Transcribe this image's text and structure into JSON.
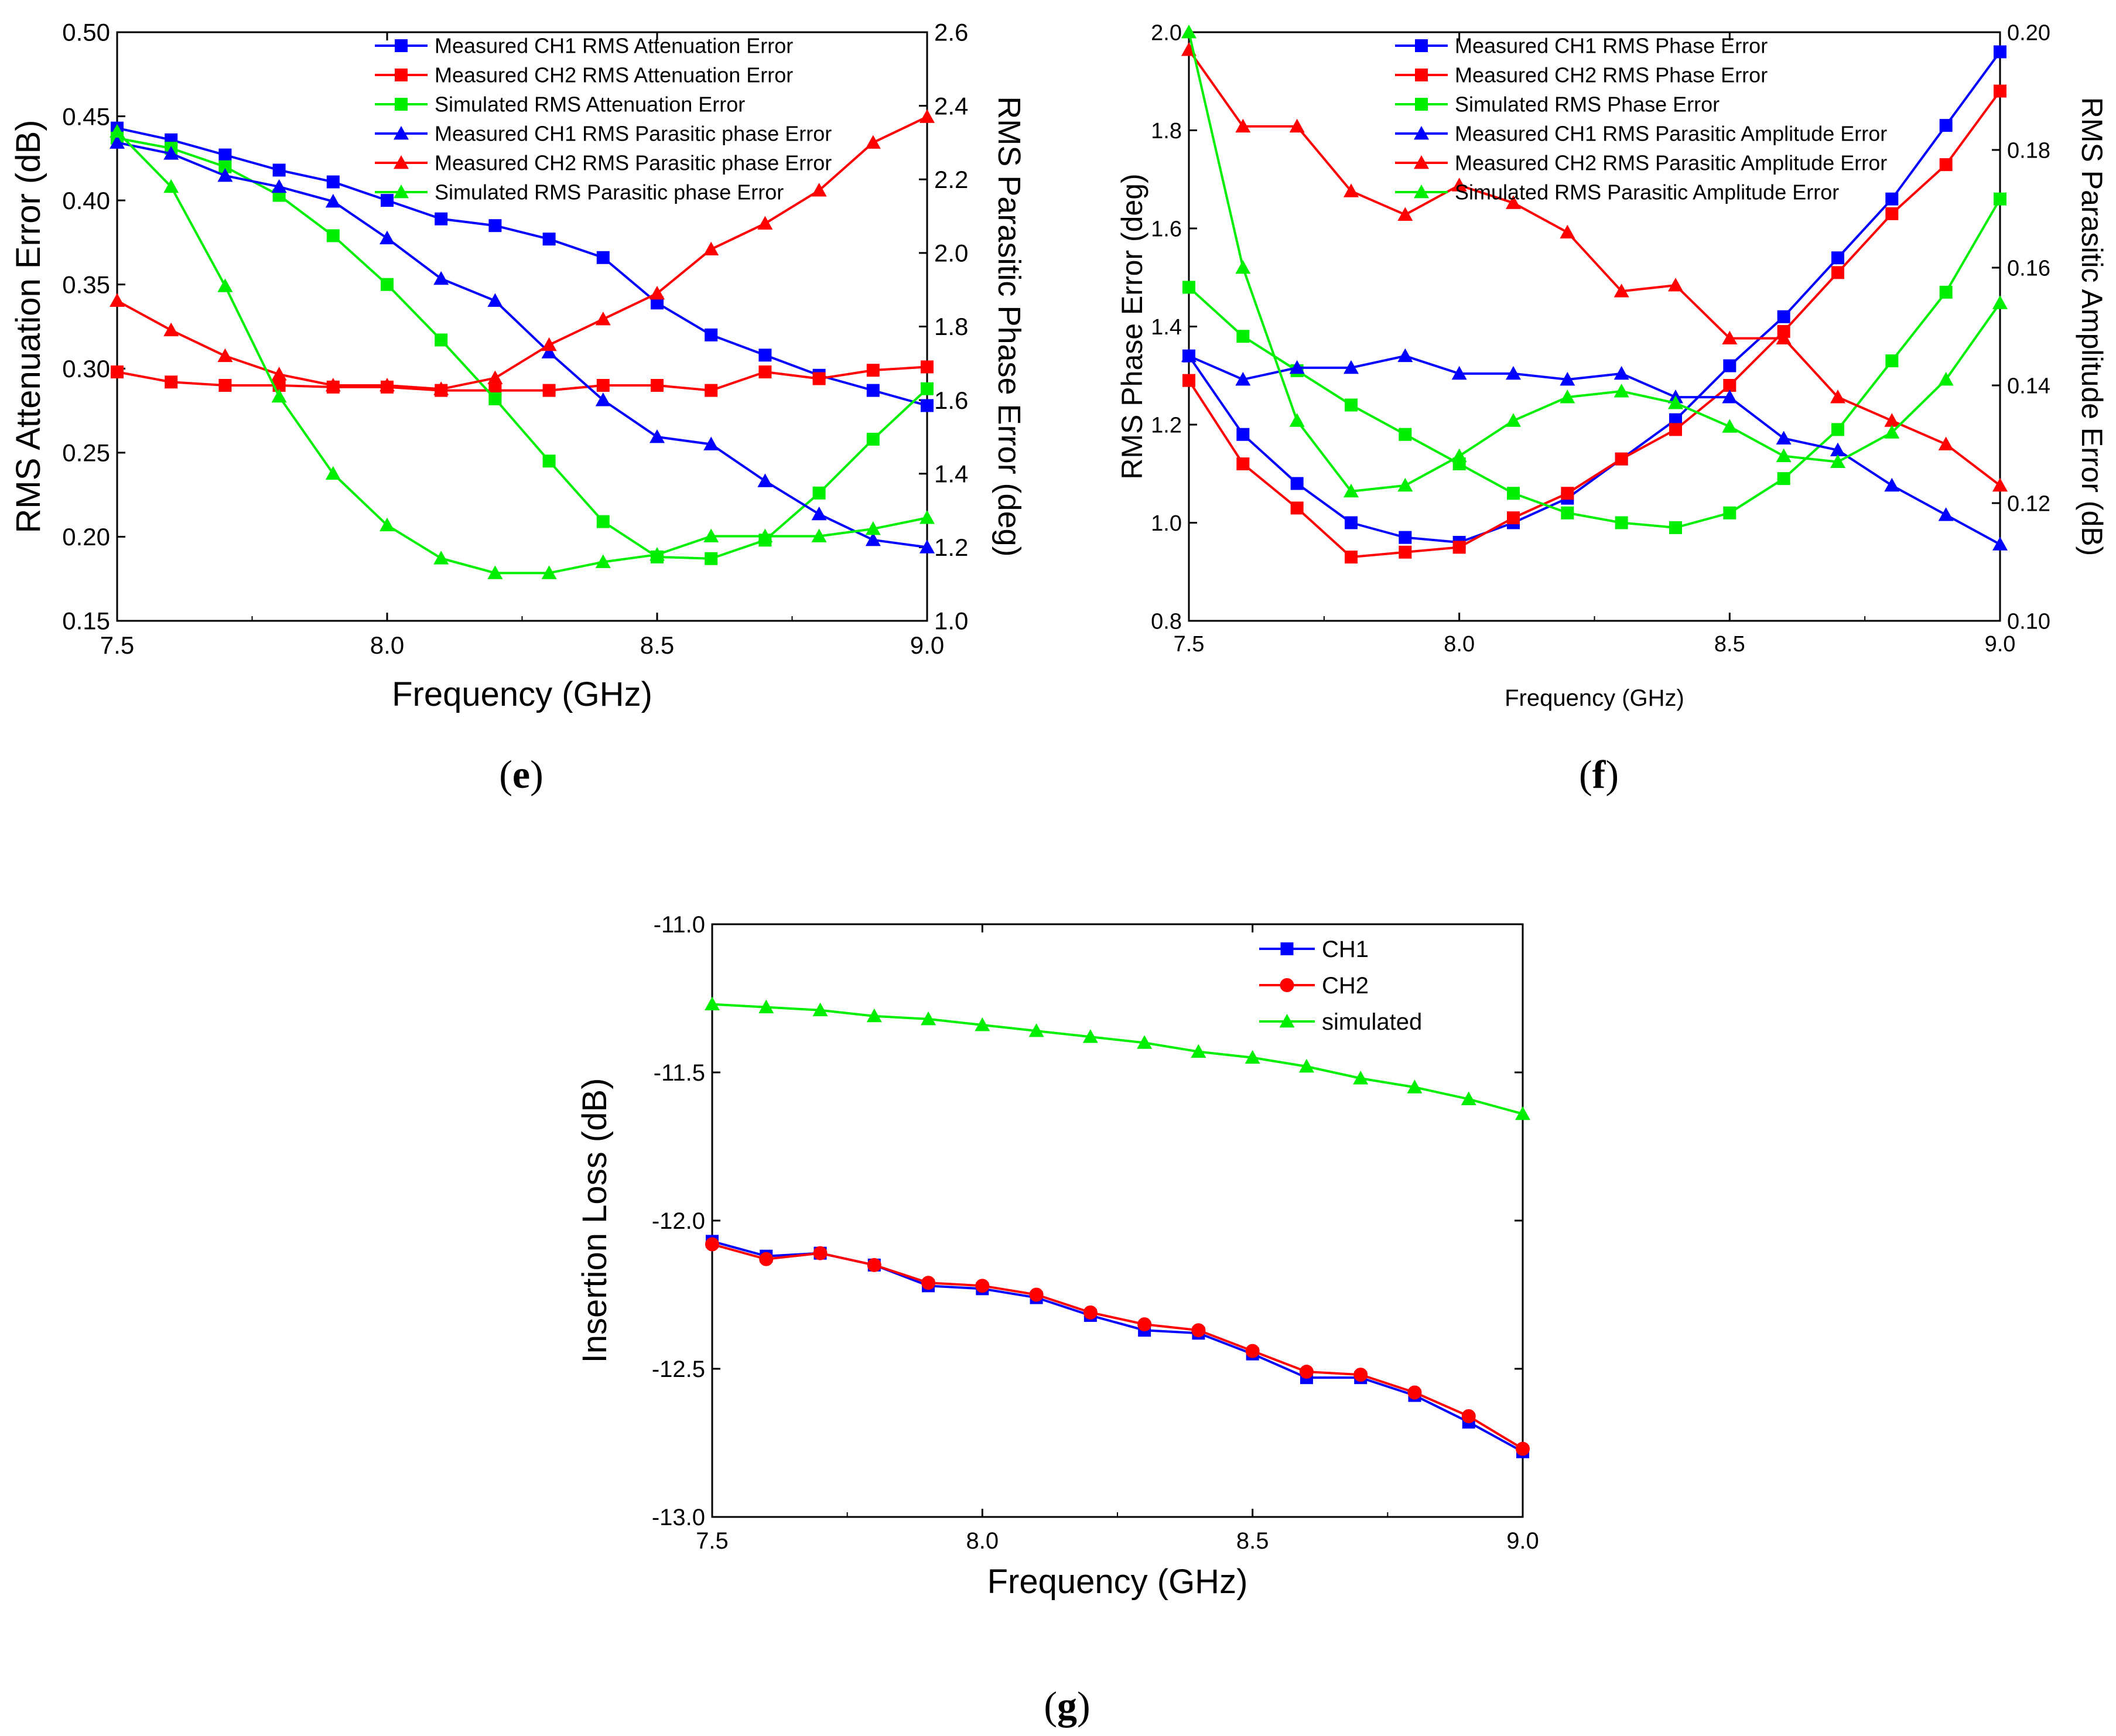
{
  "panels": [
    {
      "id": "e",
      "caption": "e",
      "chart_data": {
        "type": "line",
        "title": "",
        "xlabel": "Frequency (GHz)",
        "ylabel": "RMS Attenuation Error (dB)",
        "y2label": "RMS Parasitic Phase Error (deg)",
        "xlim": [
          7.5,
          9.0
        ],
        "ylim": [
          0.15,
          0.5
        ],
        "y2lim": [
          1.0,
          2.6
        ],
        "x_ticks": [
          "7.5",
          "8.0",
          "8.5",
          "9.0"
        ],
        "y_ticks": [
          "0.15",
          "0.20",
          "0.25",
          "0.30",
          "0.35",
          "0.40",
          "0.45",
          "0.50"
        ],
        "y2_ticks": [
          "1.0",
          "1.2",
          "1.4",
          "1.6",
          "1.8",
          "2.0",
          "2.2",
          "2.4",
          "2.6"
        ],
        "legend_position": "top-right",
        "x": [
          7.5,
          7.6,
          7.7,
          7.8,
          7.9,
          8.0,
          8.1,
          8.2,
          8.3,
          8.4,
          8.5,
          8.6,
          8.7,
          8.8,
          8.9,
          9.0
        ],
        "series": [
          {
            "name": "Measured CH1 RMS Attenuation Error",
            "color": "#0000ff",
            "marker": "square",
            "axis": "left",
            "values": [
              0.443,
              0.436,
              0.427,
              0.418,
              0.411,
              0.4,
              0.389,
              0.385,
              0.377,
              0.366,
              0.339,
              0.32,
              0.308,
              0.296,
              0.287,
              0.278
            ]
          },
          {
            "name": "Measured CH2 RMS Attenuation Error",
            "color": "#ff0000",
            "marker": "square",
            "axis": "left",
            "values": [
              0.298,
              0.292,
              0.29,
              0.29,
              0.289,
              0.289,
              0.287,
              0.287,
              0.287,
              0.29,
              0.29,
              0.287,
              0.298,
              0.294,
              0.299,
              0.301
            ]
          },
          {
            "name": "Simulated  RMS Attenuation Error",
            "color": "#00ee00",
            "marker": "square",
            "axis": "left",
            "values": [
              0.437,
              0.431,
              0.42,
              0.403,
              0.379,
              0.35,
              0.317,
              0.282,
              0.245,
              0.209,
              0.188,
              0.187,
              0.198,
              0.226,
              0.258,
              0.288
            ]
          },
          {
            "name": "Measured CH1 RMS Parasitic phase Error",
            "color": "#0000ff",
            "marker": "triangle",
            "axis": "right",
            "values": [
              2.3,
              2.27,
              2.21,
              2.18,
              2.14,
              2.04,
              1.93,
              1.87,
              1.73,
              1.6,
              1.5,
              1.48,
              1.38,
              1.29,
              1.22,
              1.2
            ]
          },
          {
            "name": "Measured CH2 RMS Parasitic phase Error",
            "color": "#ff0000",
            "marker": "triangle",
            "axis": "right",
            "values": [
              1.87,
              1.79,
              1.72,
              1.67,
              1.64,
              1.64,
              1.63,
              1.66,
              1.75,
              1.82,
              1.89,
              2.01,
              2.08,
              2.17,
              2.3,
              2.37
            ]
          },
          {
            "name": "Simulated RMS Parasitic phase Error",
            "color": "#00ee00",
            "marker": "triangle",
            "axis": "right",
            "values": [
              2.33,
              2.18,
              1.91,
              1.61,
              1.4,
              1.26,
              1.17,
              1.13,
              1.13,
              1.16,
              1.18,
              1.23,
              1.23,
              1.23,
              1.25,
              1.28
            ]
          }
        ]
      }
    },
    {
      "id": "f",
      "caption": "f",
      "chart_data": {
        "type": "line",
        "title": "",
        "xlabel": "Frequency (GHz)",
        "ylabel": "RMS Phase Error (deg)",
        "y2label": "RMS Parasitic Amplitude Error (dB)",
        "xlim": [
          7.5,
          9.0
        ],
        "ylim": [
          0.8,
          2.0
        ],
        "y2lim": [
          0.1,
          0.2
        ],
        "x_ticks": [
          "7.5",
          "8.0",
          "8.5",
          "9.0"
        ],
        "y_ticks": [
          "0.8",
          "1.0",
          "1.2",
          "1.4",
          "1.6",
          "1.8",
          "2.0"
        ],
        "y2_ticks": [
          "0.10",
          "0.12",
          "0.14",
          "0.16",
          "0.18",
          "0.20"
        ],
        "legend_position": "top-right",
        "x": [
          7.5,
          7.6,
          7.7,
          7.8,
          7.9,
          8.0,
          8.1,
          8.2,
          8.3,
          8.4,
          8.5,
          8.6,
          8.7,
          8.8,
          8.9,
          9.0
        ],
        "series": [
          {
            "name": "Measured CH1 RMS Phase Error",
            "color": "#0000ff",
            "marker": "square",
            "axis": "left",
            "values": [
              1.34,
              1.18,
              1.08,
              1.0,
              0.97,
              0.96,
              1.0,
              1.05,
              1.13,
              1.21,
              1.32,
              1.42,
              1.54,
              1.66,
              1.81,
              1.96
            ]
          },
          {
            "name": "Measured CH2 RMS Phase Error",
            "color": "#ff0000",
            "marker": "square",
            "axis": "left",
            "values": [
              1.29,
              1.12,
              1.03,
              0.93,
              0.94,
              0.95,
              1.01,
              1.06,
              1.13,
              1.19,
              1.28,
              1.39,
              1.51,
              1.63,
              1.73,
              1.88
            ]
          },
          {
            "name": "Simulated  RMS Phase Error",
            "color": "#00ee00",
            "marker": "square",
            "axis": "left",
            "values": [
              1.48,
              1.38,
              1.31,
              1.24,
              1.18,
              1.12,
              1.06,
              1.02,
              1.0,
              0.99,
              1.02,
              1.09,
              1.19,
              1.33,
              1.47,
              1.66
            ]
          },
          {
            "name": "Measured CH1 RMS Parasitic Amplitude Error",
            "color": "#0000ff",
            "marker": "triangle",
            "axis": "right",
            "values": [
              0.145,
              0.141,
              0.143,
              0.143,
              0.145,
              0.142,
              0.142,
              0.141,
              0.142,
              0.138,
              0.138,
              0.131,
              0.129,
              0.123,
              0.118,
              0.113
            ]
          },
          {
            "name": "Measured CH2 RMS Parasitic Amplitude Error",
            "color": "#ff0000",
            "marker": "triangle",
            "axis": "right",
            "values": [
              0.197,
              0.184,
              0.184,
              0.173,
              0.169,
              0.174,
              0.171,
              0.166,
              0.156,
              0.157,
              0.148,
              0.148,
              0.138,
              0.134,
              0.13,
              0.123
            ]
          },
          {
            "name": "Simulated RMS Parasitic Amplitude Error",
            "color": "#00ee00",
            "marker": "triangle",
            "axis": "right",
            "values": [
              0.2,
              0.16,
              0.134,
              0.122,
              0.123,
              0.128,
              0.134,
              0.138,
              0.139,
              0.137,
              0.133,
              0.128,
              0.127,
              0.132,
              0.141,
              0.154
            ]
          }
        ]
      }
    },
    {
      "id": "g",
      "caption": "g",
      "chart_data": {
        "type": "line",
        "title": "",
        "xlabel": "Frequency (GHz)",
        "ylabel": "Insertion Loss (dB)",
        "xlim": [
          7.5,
          9.0
        ],
        "ylim": [
          -13.0,
          -11.0
        ],
        "x_ticks": [
          "7.5",
          "8.0",
          "8.5",
          "9.0"
        ],
        "y_ticks": [
          "-13.0",
          "-12.5",
          "-12.0",
          "-11.5",
          "-11.0"
        ],
        "legend_position": "top-right",
        "x": [
          7.5,
          7.6,
          7.7,
          7.8,
          7.9,
          8.0,
          8.1,
          8.2,
          8.3,
          8.4,
          8.5,
          8.6,
          8.7,
          8.8,
          8.9,
          9.0
        ],
        "series": [
          {
            "name": "CH1",
            "color": "#0000ff",
            "marker": "square",
            "axis": "left",
            "values": [
              -12.07,
              -12.12,
              -12.11,
              -12.15,
              -12.22,
              -12.23,
              -12.26,
              -12.32,
              -12.37,
              -12.38,
              -12.45,
              -12.53,
              -12.53,
              -12.59,
              -12.68,
              -12.78
            ]
          },
          {
            "name": "CH2",
            "color": "#ff0000",
            "marker": "circle",
            "axis": "left",
            "values": [
              -12.08,
              -12.13,
              -12.11,
              -12.15,
              -12.21,
              -12.22,
              -12.25,
              -12.31,
              -12.35,
              -12.37,
              -12.44,
              -12.51,
              -12.52,
              -12.58,
              -12.66,
              -12.77
            ]
          },
          {
            "name": "simulated",
            "color": "#00ee00",
            "marker": "triangle",
            "axis": "left",
            "values": [
              -11.27,
              -11.28,
              -11.29,
              -11.31,
              -11.32,
              -11.34,
              -11.36,
              -11.38,
              -11.4,
              -11.43,
              -11.45,
              -11.48,
              -11.52,
              -11.55,
              -11.59,
              -11.64
            ]
          }
        ]
      }
    }
  ]
}
